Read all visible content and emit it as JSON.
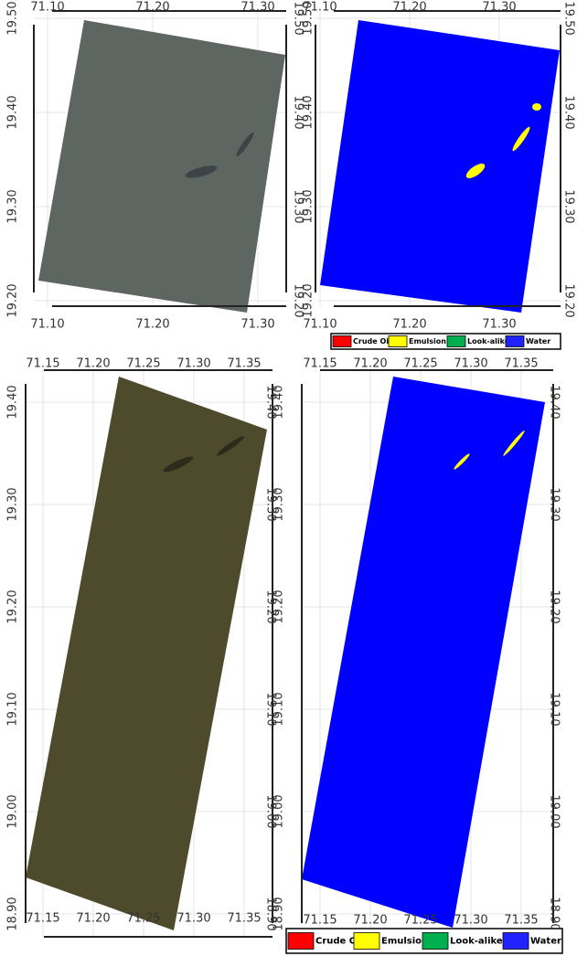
{
  "panels": [
    {
      "x_ticks": [
        "71.10",
        "71.20",
        "71.30"
      ],
      "y_ticks": [
        "19.50",
        "19.40",
        "19.30",
        "19.20"
      ]
    },
    {
      "x_ticks": [
        "71.10",
        "71.20",
        "71.30"
      ],
      "y_ticks": [
        "19.50",
        "19.40",
        "19.30",
        "19.20"
      ]
    },
    {
      "x_ticks": [
        "71.15",
        "71.20",
        "71.25",
        "71.30",
        "71.35"
      ],
      "y_ticks": [
        "19.40",
        "19.30",
        "19.20",
        "19.10",
        "19.00",
        "18.90"
      ]
    },
    {
      "x_ticks": [
        "71.15",
        "71.20",
        "71.25",
        "71.30",
        "71.35"
      ],
      "y_ticks": [
        "19.40",
        "19.30",
        "19.20",
        "19.10",
        "19.00",
        "18.90"
      ]
    }
  ],
  "legends": [
    {
      "items": [
        {
          "label": "Crude Oil",
          "color": "#ff0000"
        },
        {
          "label": "Emulsion",
          "color": "#ffff00"
        },
        {
          "label": "Look-alike",
          "color": "#00b050"
        },
        {
          "label": "Water",
          "color": "#2222ff"
        }
      ]
    },
    {
      "items": [
        {
          "label": "Crude Oil",
          "color": "#ff0000"
        },
        {
          "label": "Emulsion",
          "color": "#ffff00"
        },
        {
          "label": "Look-alike",
          "color": "#00b050"
        },
        {
          "label": "Water",
          "color": "#2222ff"
        }
      ]
    }
  ]
}
